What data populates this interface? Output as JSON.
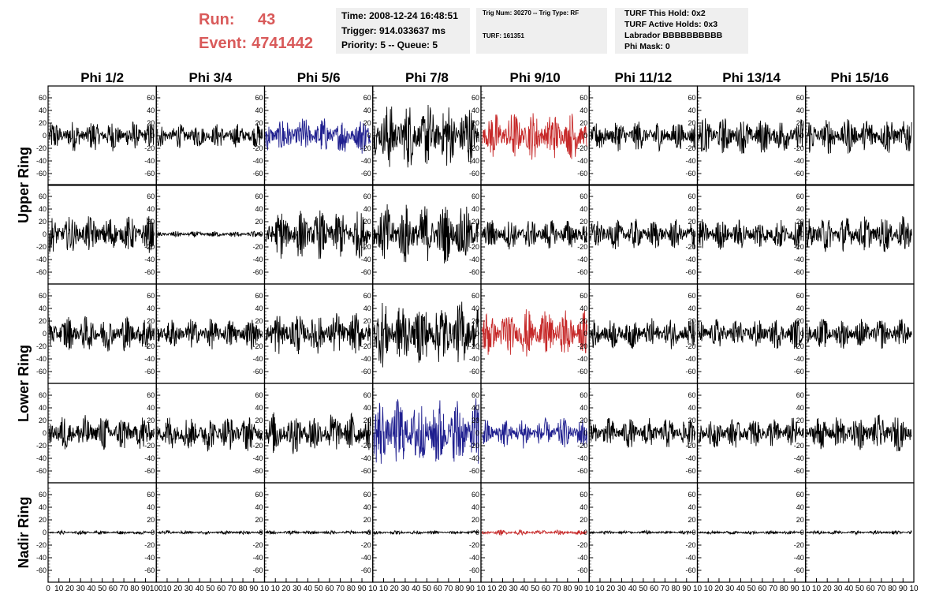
{
  "header": {
    "run_label": "Run:",
    "run_value": "43",
    "event_label": "Event:",
    "event_value": "4741442",
    "time": "Time: 2008-12-24 16:48:51",
    "trigger": "Trigger: 914.033637 ms",
    "priority": "Priority: 5 -- Queue: 5",
    "trig_num": "Trig Num: 30270 -- Trig Type: RF",
    "turf": "TURF: 161351",
    "turf_hold": "TURF This Hold: 0x2",
    "turf_active": "TURF Active Holds: 0x3",
    "labrador": "Labrador BBBBBBBBBB",
    "phi_mask": "Phi Mask: 0"
  },
  "colors": {
    "black": "#000000",
    "blue": "#1f1f8f",
    "red": "#c62828",
    "header_red": "#d95a5a",
    "box_bg": "#efefef"
  },
  "chart_data": {
    "type": "line",
    "columns": [
      "Phi 1/2",
      "Phi 3/4",
      "Phi 5/6",
      "Phi 7/8",
      "Phi 9/10",
      "Phi 11/12",
      "Phi 13/14",
      "Phi 15/16"
    ],
    "rows": [
      "Upper Ring",
      "Upper Ring",
      "Lower Ring",
      "Lower Ring",
      "Nadir Ring"
    ],
    "row_labels": [
      "Upper Ring",
      "Lower Ring",
      "Nadir Ring"
    ],
    "xlim": [
      0,
      100
    ],
    "ylim": [
      -70,
      70
    ],
    "yticks": [
      -60,
      -40,
      -20,
      0,
      20,
      40,
      60
    ],
    "xticks": [
      0,
      10,
      20,
      30,
      40,
      50,
      60,
      70,
      80,
      90,
      100
    ],
    "first_xtick_labels": [
      "0",
      "10",
      "20",
      "30",
      "40",
      "50",
      "60",
      "70",
      "80",
      "90",
      "100"
    ],
    "panel_xtick_labels": [
      "10",
      "20",
      "30",
      "40",
      "50",
      "60",
      "70",
      "80",
      "90",
      "10"
    ],
    "trace_amplitude": [
      [
        25,
        20,
        30,
        55,
        40,
        25,
        30,
        30
      ],
      [
        30,
        5,
        40,
        50,
        25,
        25,
        25,
        30
      ],
      [
        30,
        25,
        35,
        55,
        40,
        25,
        25,
        25
      ],
      [
        30,
        30,
        35,
        60,
        25,
        25,
        25,
        30
      ],
      [
        3,
        3,
        3,
        3,
        4,
        3,
        3,
        3
      ]
    ],
    "trace_color": [
      [
        "black",
        "black",
        "blue",
        "black",
        "red",
        "black",
        "black",
        "black"
      ],
      [
        "black",
        "black",
        "black",
        "black",
        "black",
        "black",
        "black",
        "black"
      ],
      [
        "black",
        "black",
        "black",
        "black",
        "red",
        "black",
        "black",
        "black"
      ],
      [
        "black",
        "black",
        "black",
        "blue",
        "blue",
        "black",
        "black",
        "black"
      ],
      [
        "black",
        "black",
        "black",
        "black",
        "red",
        "black",
        "black",
        "black"
      ]
    ]
  }
}
